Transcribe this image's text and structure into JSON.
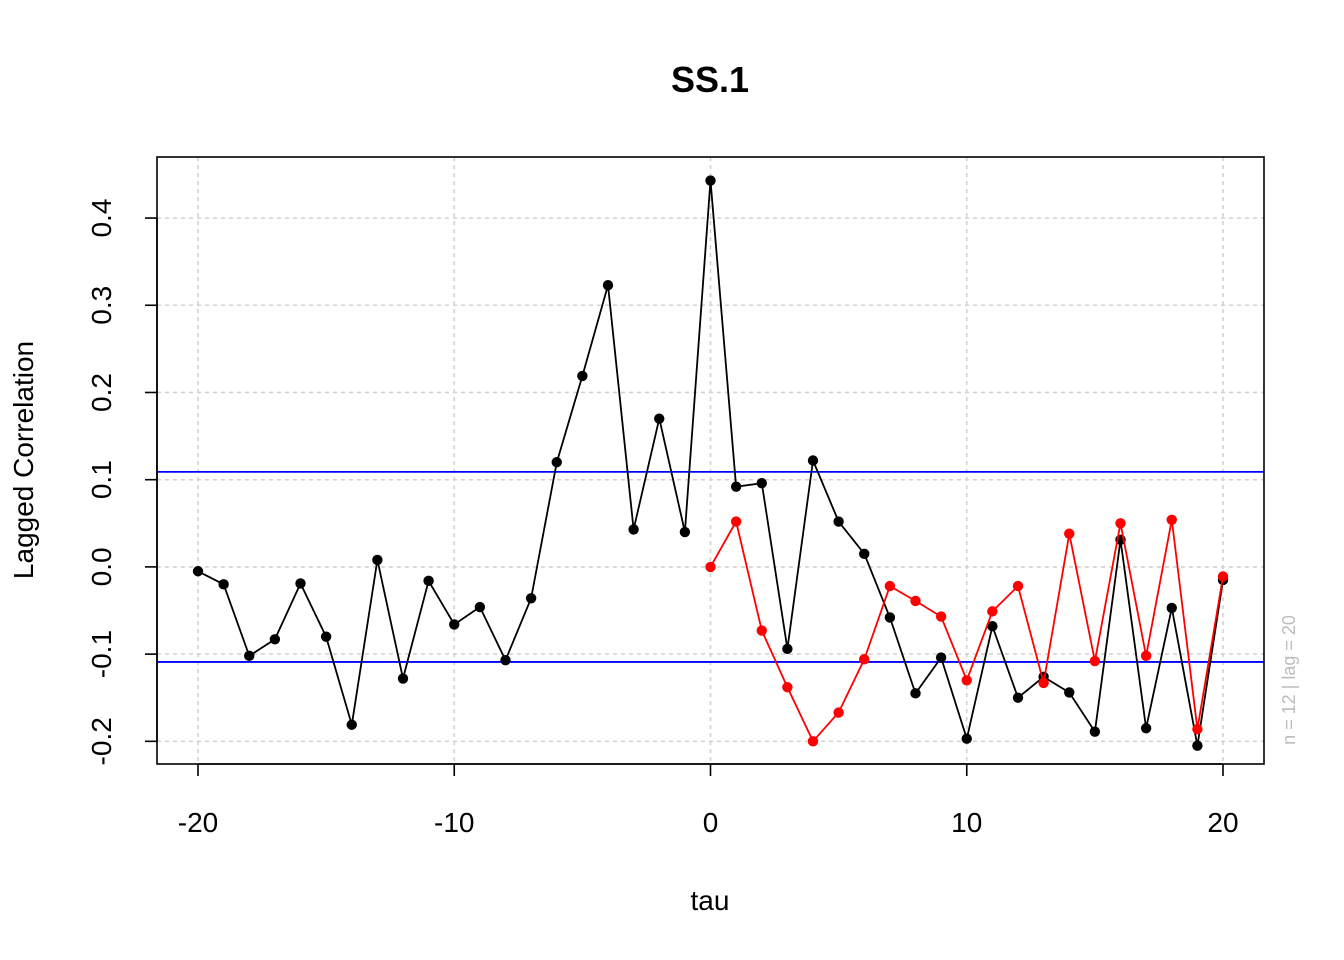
{
  "chart_data": {
    "type": "line",
    "title": "SS.1",
    "xlabel": "tau",
    "ylabel": "Lagged Correlation",
    "side_note": "n = 12  |  lag = 20",
    "xlim": [
      -21.6,
      21.6
    ],
    "ylim": [
      -0.226,
      0.47
    ],
    "x_ticks": [
      -20,
      -10,
      0,
      10,
      20
    ],
    "x_tick_labels": [
      "-20",
      "-10",
      "0",
      "10",
      "20"
    ],
    "y_ticks": [
      -0.2,
      -0.1,
      0.0,
      0.1,
      0.2,
      0.3,
      0.4
    ],
    "y_tick_labels": [
      "-0.2",
      "-0.1",
      "0.0",
      "0.1",
      "0.2",
      "0.3",
      "0.4"
    ],
    "grid": true,
    "confidence_band": {
      "upper": 0.109,
      "lower": -0.109,
      "color": "#0000ff"
    },
    "series": [
      {
        "color": "#000000",
        "x": [
          -20,
          -19,
          -18,
          -17,
          -16,
          -15,
          -14,
          -13,
          -12,
          -11,
          -10,
          -9,
          -8,
          -7,
          -6,
          -5,
          -4,
          -3,
          -2,
          -1,
          0,
          1,
          2,
          3,
          4,
          5,
          6,
          7,
          8,
          9,
          10,
          11,
          12,
          13,
          14,
          15,
          16,
          17,
          18,
          19,
          20
        ],
        "values": [
          -0.005,
          -0.02,
          -0.102,
          -0.083,
          -0.019,
          -0.08,
          -0.181,
          0.008,
          -0.128,
          -0.016,
          -0.066,
          -0.046,
          -0.107,
          -0.036,
          0.12,
          0.219,
          0.323,
          0.043,
          0.17,
          0.04,
          0.443,
          0.092,
          0.096,
          -0.094,
          0.122,
          0.052,
          0.015,
          -0.058,
          -0.145,
          -0.104,
          -0.197,
          -0.068,
          -0.15,
          -0.126,
          -0.144,
          -0.189,
          0.031,
          -0.185,
          -0.047,
          -0.205,
          -0.015
        ]
      },
      {
        "color": "#ff0000",
        "x": [
          0,
          1,
          2,
          3,
          4,
          5,
          6,
          7,
          8,
          9,
          10,
          11,
          12,
          13,
          14,
          15,
          16,
          17,
          18,
          19,
          20
        ],
        "values": [
          0.0,
          0.052,
          -0.073,
          -0.138,
          -0.2,
          -0.167,
          -0.106,
          -0.022,
          -0.039,
          -0.057,
          -0.13,
          -0.051,
          -0.022,
          -0.133,
          0.038,
          -0.108,
          0.05,
          -0.102,
          0.054,
          -0.186,
          -0.011
        ]
      }
    ]
  }
}
